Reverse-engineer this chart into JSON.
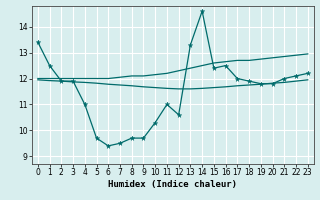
{
  "xlabel": "Humidex (Indice chaleur)",
  "bg_color": "#d8eeee",
  "line_color": "#006b6b",
  "grid_color": "#ffffff",
  "xlim": [
    -0.5,
    23.5
  ],
  "ylim": [
    8.7,
    14.8
  ],
  "yticks": [
    9,
    10,
    11,
    12,
    13,
    14
  ],
  "xticks": [
    0,
    1,
    2,
    3,
    4,
    5,
    6,
    7,
    8,
    9,
    10,
    11,
    12,
    13,
    14,
    15,
    16,
    17,
    18,
    19,
    20,
    21,
    22,
    23
  ],
  "line1_x": [
    0,
    1,
    2,
    3,
    4,
    5,
    6,
    7,
    8,
    9,
    10,
    11,
    12,
    13,
    14,
    15,
    16,
    17,
    18,
    19,
    20,
    21,
    22,
    23
  ],
  "line1_y": [
    13.4,
    12.5,
    11.9,
    11.9,
    11.0,
    9.7,
    9.4,
    9.5,
    9.7,
    9.7,
    10.3,
    11.0,
    10.6,
    13.3,
    14.6,
    12.4,
    12.5,
    12.0,
    11.9,
    11.8,
    11.8,
    12.0,
    12.1,
    12.2
  ],
  "line2_x": [
    0,
    1,
    2,
    3,
    4,
    5,
    6,
    7,
    8,
    9,
    10,
    11,
    12,
    13,
    14,
    15,
    16,
    17,
    18,
    19,
    20,
    21,
    22,
    23
  ],
  "line2_y": [
    12.0,
    12.0,
    12.0,
    12.0,
    12.0,
    12.0,
    12.0,
    12.05,
    12.1,
    12.1,
    12.15,
    12.2,
    12.3,
    12.4,
    12.5,
    12.6,
    12.65,
    12.7,
    12.7,
    12.75,
    12.8,
    12.85,
    12.9,
    12.95
  ],
  "line3_x": [
    0,
    1,
    2,
    3,
    4,
    5,
    6,
    7,
    8,
    9,
    10,
    11,
    12,
    13,
    14,
    15,
    16,
    17,
    18,
    19,
    20,
    21,
    22,
    23
  ],
  "line3_y": [
    11.95,
    11.92,
    11.9,
    11.87,
    11.85,
    11.82,
    11.78,
    11.75,
    11.72,
    11.68,
    11.65,
    11.62,
    11.6,
    11.6,
    11.62,
    11.65,
    11.68,
    11.72,
    11.75,
    11.78,
    11.82,
    11.85,
    11.9,
    11.95
  ]
}
